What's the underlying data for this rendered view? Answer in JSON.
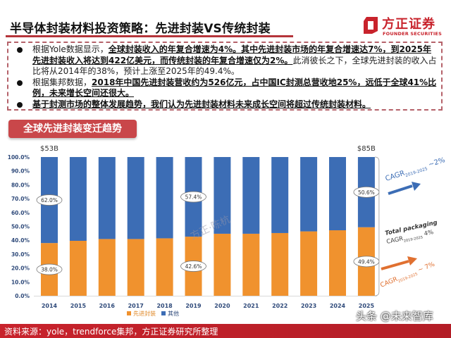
{
  "header": {
    "title": "半导体封装材料投资策略：先进封装VS传统封装",
    "logo_cn": "方正证券",
    "logo_en": "FOUNDER SECURITIES",
    "brand_color": "#c8232c"
  },
  "bullets": [
    {
      "parts": [
        {
          "text": "根据Yole数据显示，",
          "em": false
        },
        {
          "text": "全球封装收入的年复合增速为4%。其中先进封装市场的年复合增速达7%，到2025年先进封装收入将达到422亿美元，而传统封装的年复合增速仅为2%。",
          "em": true
        },
        {
          "text": "此消彼长之下，全球先进封装的收入占比将从2014年的38%，预计上涨至2025年的49.4%。",
          "em": false
        }
      ]
    },
    {
      "parts": [
        {
          "text": "根据集邦数据，",
          "em": false
        },
        {
          "text": "2018年中国先进封装营收约为526亿元，占中国IC封测总营收地25%，远低于全球41%比例，未来增长空间还很大。",
          "em": true
        }
      ]
    },
    {
      "parts": [
        {
          "text": "基于封测市场的整体发展趋势，我们认为先进封装材料未来成长空间将超过传统封装材料。",
          "em": true
        }
      ]
    }
  ],
  "section_label": "全球先进封装变迁趋势",
  "chart_data": {
    "type": "bar",
    "stacked": true,
    "title": "全球先进封装变迁趋势",
    "categories": [
      "2014",
      "2015",
      "2016",
      "2017",
      "2018",
      "2019",
      "2020",
      "2021",
      "2022",
      "2023",
      "2024",
      "2025"
    ],
    "series": [
      {
        "name": "先进封装",
        "color": "#f0922e",
        "values": [
          38.0,
          39.6,
          40.9,
          40.9,
          41.4,
          42.6,
          44.7,
          44.7,
          45.2,
          46.4,
          47.2,
          49.4
        ]
      },
      {
        "name": "其他",
        "color": "#3c6db5",
        "values": [
          62.0,
          60.4,
          59.1,
          59.1,
          58.6,
          57.4,
          55.3,
          55.3,
          54.8,
          53.6,
          52.8,
          50.6
        ]
      }
    ],
    "y_ticks": [
      "0.0%",
      "10.0%",
      "20.0%",
      "30.0%",
      "40.0%",
      "50.0%",
      "60.0%",
      "70.0%",
      "80.0%",
      "90.0%",
      "100.0%"
    ],
    "ylim": [
      0,
      100
    ],
    "xlabel": "",
    "ylabel": "",
    "grid": false,
    "legend": "bottom",
    "data_labels": [
      {
        "category": "2014",
        "series": "其他",
        "text": "62.0%"
      },
      {
        "category": "2014",
        "series": "先进封装",
        "text": "38.0%"
      },
      {
        "category": "2019",
        "series": "其他",
        "text": "57.4%"
      },
      {
        "category": "2019",
        "series": "先进封装",
        "text": "42.6%"
      },
      {
        "category": "2025",
        "series": "其他",
        "text": "50.6%"
      },
      {
        "category": "2025",
        "series": "先进封装",
        "text": "49.4%"
      }
    ],
    "totals": [
      {
        "category": "2014",
        "text": "$53B"
      },
      {
        "category": "2025",
        "text": "$85B"
      }
    ],
    "annotations": {
      "other_cagr": {
        "prefix": "CAGR",
        "sub": "2019-2025",
        "suffix": " ~2%",
        "color": "#3c6db5"
      },
      "total_cagr_line1": "Total packaging",
      "total_cagr": {
        "prefix": "CAGR",
        "sub": "2019-2025",
        "suffix": " 4%",
        "color": "#444444"
      },
      "advanced_cagr": {
        "prefix": "CAGR",
        "sub": "2019-2025",
        "suffix": " ~ 7%",
        "color": "#e07030"
      }
    }
  },
  "footer": {
    "source": "资料来源：yole，trendforce集邦，方正证券研究所整理",
    "watermark": "头条 @未来智库"
  },
  "chart_watermark": "方正·陈杭"
}
